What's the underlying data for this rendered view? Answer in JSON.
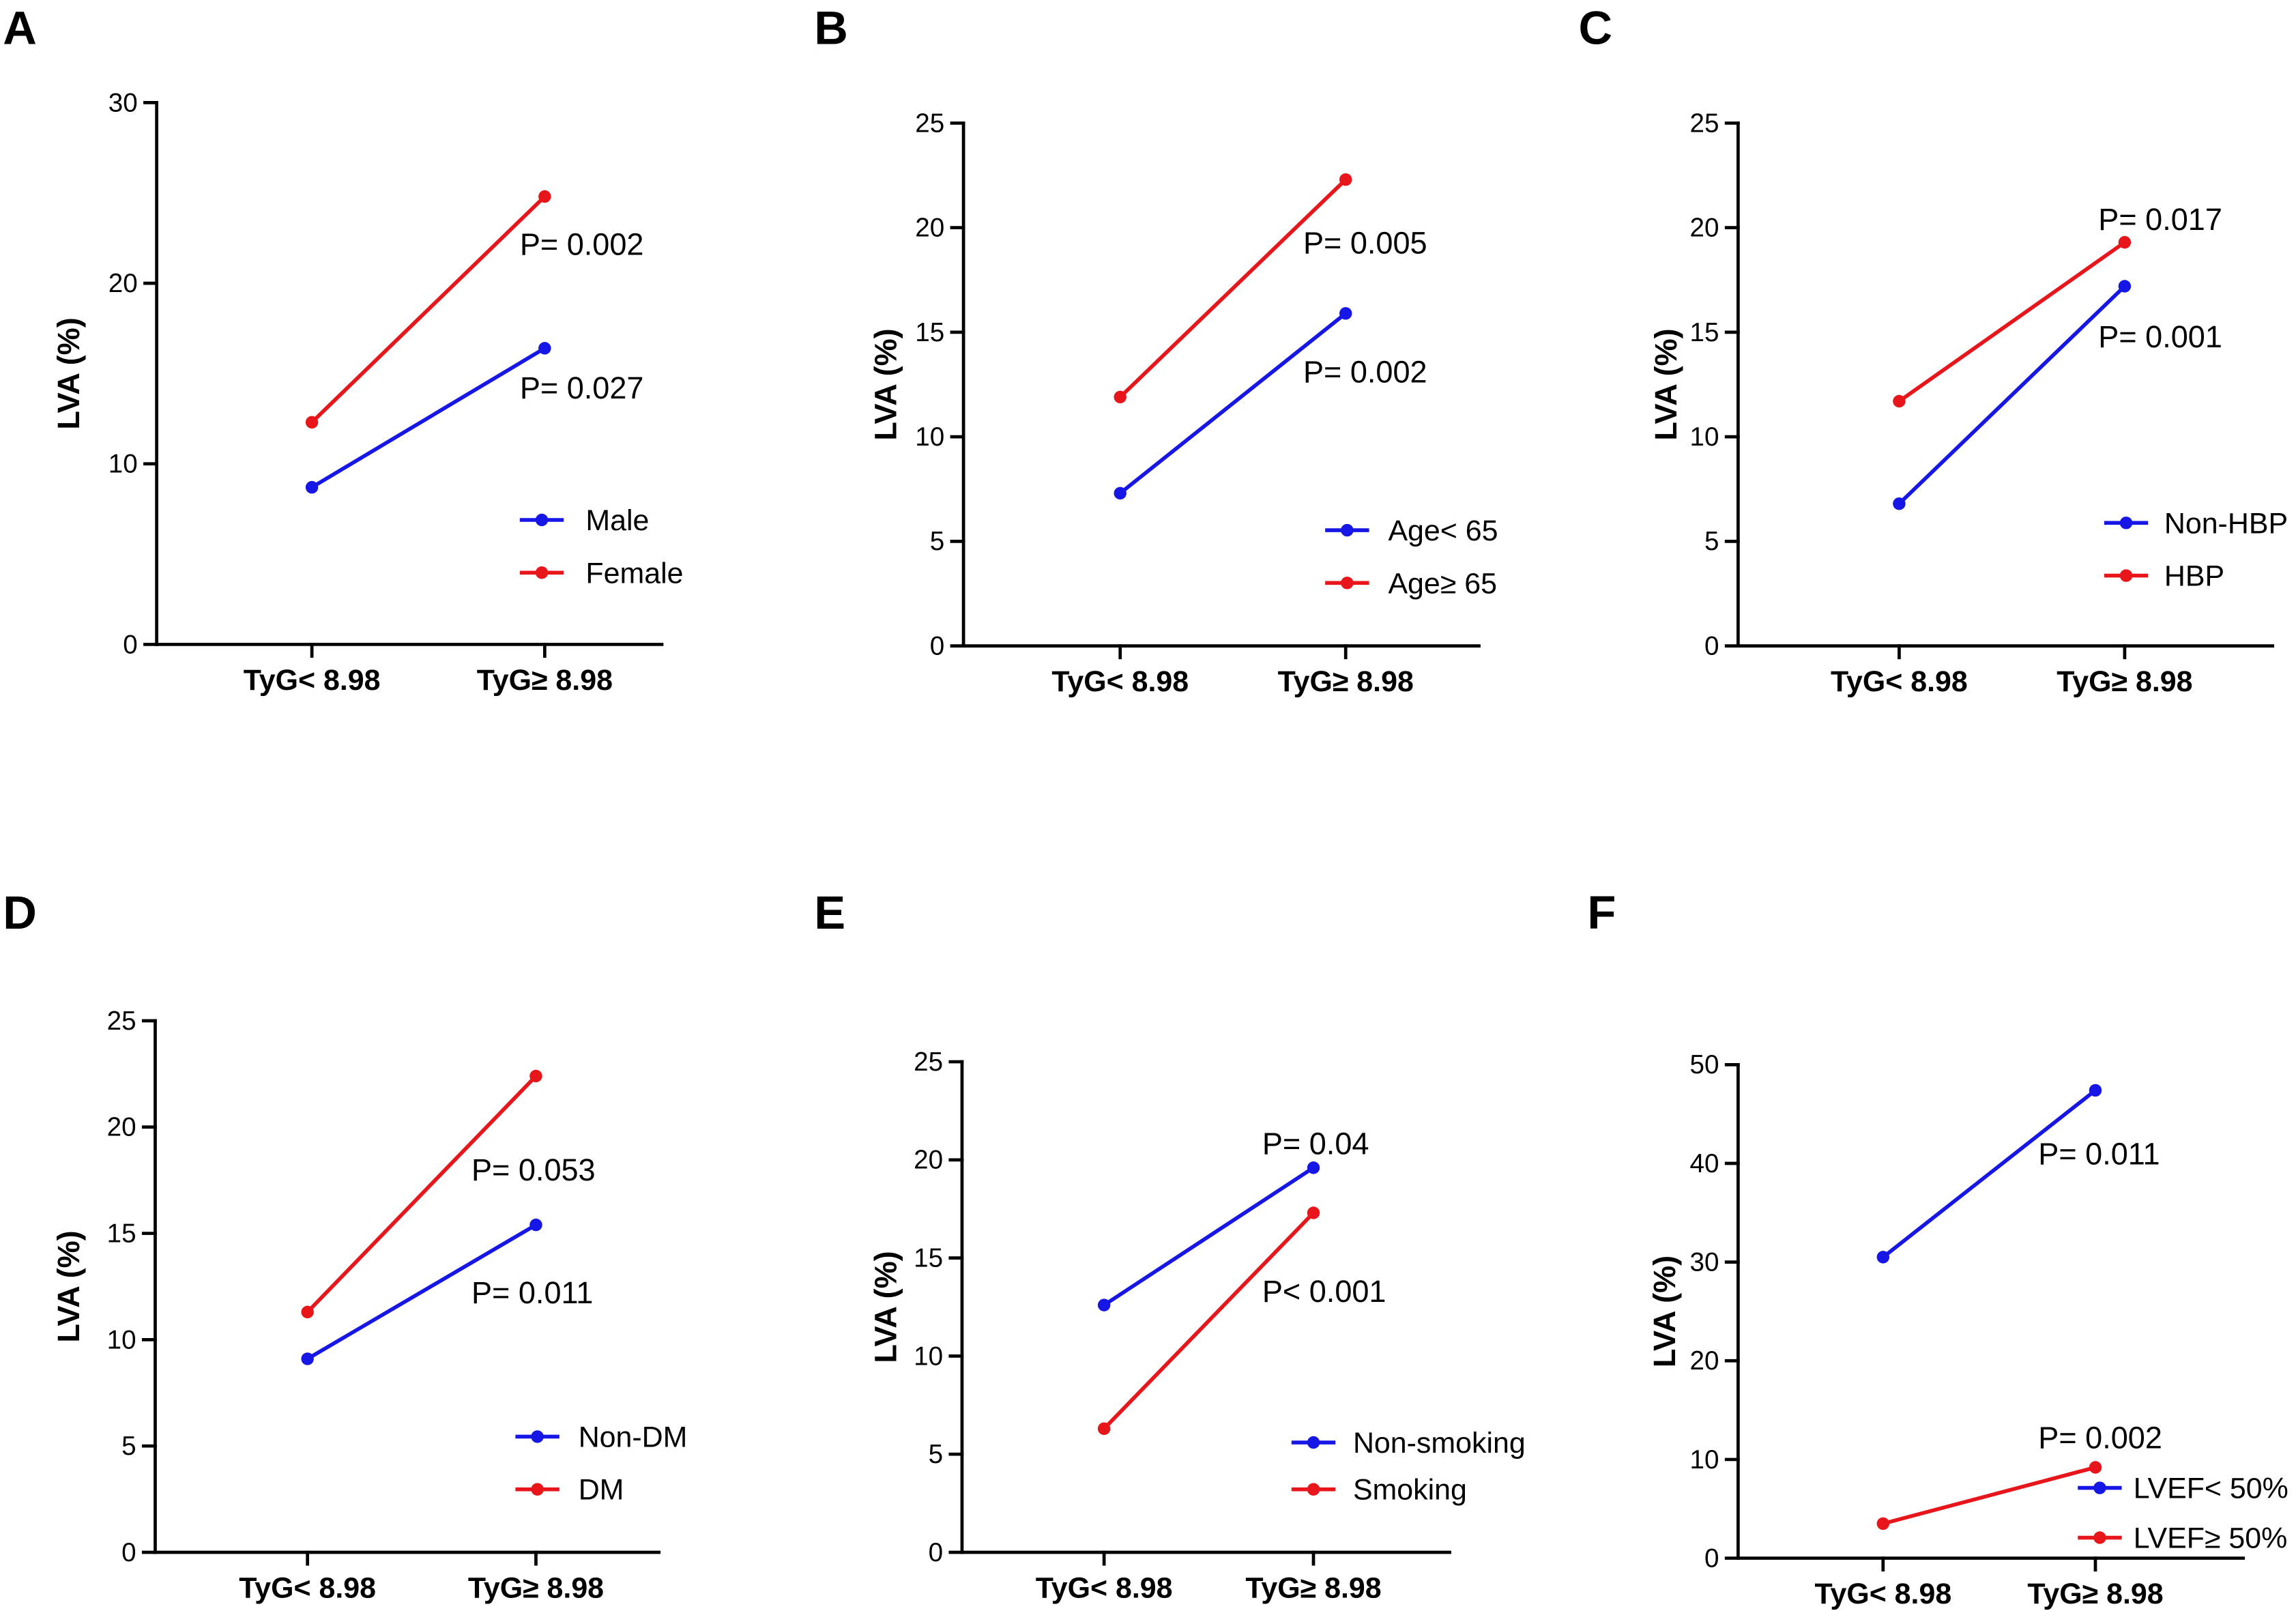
{
  "chart_data": [
    {
      "type": "line",
      "panel": "A",
      "ylabel": "LVA (%)",
      "categories": [
        "TyG< 8.98",
        "TyG≥ 8.98"
      ],
      "ylim": [
        0,
        30
      ],
      "yticks": [
        0,
        10,
        20,
        30
      ],
      "series": [
        {
          "name": "Male",
          "color": "#1616e6",
          "values": [
            8.7,
            16.4
          ]
        },
        {
          "name": "Female",
          "color": "#e8161b",
          "values": [
            12.3,
            24.8
          ]
        }
      ],
      "annotations": [
        "P= 0.002",
        "P= 0.027"
      ],
      "legend": "bottom-right"
    },
    {
      "type": "line",
      "panel": "B",
      "ylabel": "LVA (%)",
      "categories": [
        "TyG< 8.98",
        "TyG≥ 8.98"
      ],
      "ylim": [
        0,
        25
      ],
      "yticks": [
        0,
        5,
        10,
        15,
        20,
        25
      ],
      "series": [
        {
          "name": "Age< 65",
          "color": "#1616e6",
          "values": [
            7.3,
            15.9
          ]
        },
        {
          "name": "Age≥ 65",
          "color": "#e8161b",
          "values": [
            11.9,
            22.3
          ]
        }
      ],
      "annotations": [
        "P= 0.005",
        "P= 0.002"
      ],
      "legend": "bottom-right"
    },
    {
      "type": "line",
      "panel": "C",
      "ylabel": "LVA (%)",
      "categories": [
        "TyG< 8.98",
        "TyG≥ 8.98"
      ],
      "ylim": [
        0,
        25
      ],
      "yticks": [
        0,
        5,
        10,
        15,
        20,
        25
      ],
      "series": [
        {
          "name": "Non-HBP",
          "color": "#1616e6",
          "values": [
            6.8,
            17.2
          ]
        },
        {
          "name": "HBP",
          "color": "#e8161b",
          "values": [
            11.7,
            19.3
          ]
        }
      ],
      "annotations": [
        "P= 0.017",
        "P= 0.001"
      ],
      "legend": "bottom-right"
    },
    {
      "type": "line",
      "panel": "D",
      "ylabel": "LVA (%)",
      "categories": [
        "TyG< 8.98",
        "TyG≥ 8.98"
      ],
      "ylim": [
        0,
        25
      ],
      "yticks": [
        0,
        5,
        10,
        15,
        20,
        25
      ],
      "series": [
        {
          "name": "Non-DM",
          "color": "#1616e6",
          "values": [
            9.1,
            15.4
          ]
        },
        {
          "name": "DM",
          "color": "#e8161b",
          "values": [
            11.3,
            22.4
          ]
        }
      ],
      "annotations": [
        "P= 0.053",
        "P= 0.011"
      ],
      "legend": "bottom-right"
    },
    {
      "type": "line",
      "panel": "E",
      "ylabel": "LVA (%)",
      "categories": [
        "TyG< 8.98",
        "TyG≥ 8.98"
      ],
      "ylim": [
        0,
        25
      ],
      "yticks": [
        0,
        5,
        10,
        15,
        20,
        25
      ],
      "series": [
        {
          "name": "Non-smoking",
          "color": "#1616e6",
          "values": [
            12.6,
            19.6
          ]
        },
        {
          "name": "Smoking",
          "color": "#e8161b",
          "values": [
            6.3,
            17.3
          ]
        }
      ],
      "annotations": [
        "P= 0.04",
        "P< 0.001"
      ],
      "legend": "bottom-right"
    },
    {
      "type": "line",
      "panel": "F",
      "ylabel": "LVA (%)",
      "categories": [
        "TyG< 8.98",
        "TyG≥ 8.98"
      ],
      "ylim": [
        0,
        50
      ],
      "yticks": [
        0,
        10,
        20,
        30,
        40,
        50
      ],
      "series": [
        {
          "name": "LVEF< 50%",
          "color": "#1616e6",
          "values": [
            30.5,
            47.4
          ]
        },
        {
          "name": "LVEF≥ 50%",
          "color": "#e8161b",
          "values": [
            3.5,
            9.2
          ]
        }
      ],
      "annotations": [
        "P= 0.011",
        "P= 0.002"
      ],
      "legend": "bottom-right"
    }
  ]
}
